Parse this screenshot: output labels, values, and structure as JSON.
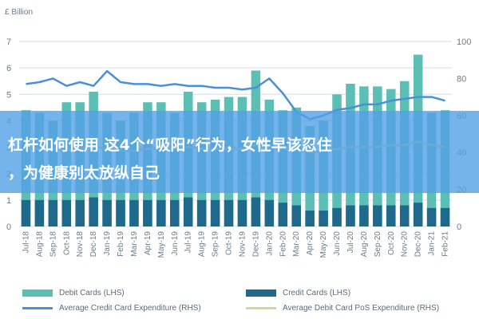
{
  "chart_data": {
    "type": "bar",
    "unit_label": "£ Billion",
    "categories": [
      "Jul-18",
      "Aug-18",
      "Sep-18",
      "Oct-18",
      "Nov-18",
      "Dec-18",
      "Jan-19",
      "Feb-19",
      "Mar-19",
      "Apr-19",
      "May-19",
      "Jun-19",
      "Jul-19",
      "Aug-19",
      "Sep-19",
      "Oct-19",
      "Nov-19",
      "Dec-19",
      "Jan-20",
      "Feb-20",
      "Mar-20",
      "Apr-20",
      "May-20",
      "Jun-20",
      "Jul-20",
      "Aug-20",
      "Sep-20",
      "Oct-20",
      "Nov-20",
      "Dec-20",
      "Jan-21",
      "Feb-21"
    ],
    "left_axis": {
      "ylim": [
        0,
        7
      ],
      "ticks": [
        "0",
        "1",
        "2",
        "3",
        "4",
        "5",
        "6",
        "7"
      ]
    },
    "right_axis": {
      "ylim": [
        0,
        100
      ],
      "ticks": [
        "0",
        "20",
        "40",
        "60",
        "80",
        "100"
      ]
    },
    "series": [
      {
        "name": "Debit Cards (LHS)",
        "kind": "bar",
        "axis": "left",
        "color": "#5bbfb5",
        "values": [
          4.4,
          4.3,
          4.0,
          4.7,
          4.7,
          5.1,
          4.3,
          4.0,
          4.3,
          4.7,
          4.7,
          4.3,
          5.1,
          4.7,
          4.8,
          4.9,
          4.9,
          5.9,
          4.8,
          4.4,
          4.5,
          3.8,
          4.0,
          5.0,
          5.4,
          5.3,
          5.3,
          5.2,
          5.5,
          6.5,
          4.3,
          4.4
        ]
      },
      {
        "name": "Credit Cards (LHS)",
        "kind": "bar",
        "axis": "left",
        "color": "#1f6a8c",
        "values": [
          1.0,
          1.0,
          1.0,
          1.0,
          1.0,
          1.1,
          1.0,
          1.0,
          1.0,
          1.0,
          1.0,
          1.0,
          1.1,
          1.0,
          1.0,
          1.0,
          1.0,
          1.1,
          1.0,
          0.9,
          0.8,
          0.6,
          0.6,
          0.7,
          0.8,
          0.8,
          0.8,
          0.8,
          0.8,
          0.9,
          0.7,
          0.7
        ]
      },
      {
        "name": "Average Credit Card Expenditure (RHS)",
        "kind": "line",
        "axis": "right",
        "color": "#4a90d9",
        "values": [
          77,
          78,
          80,
          76,
          78,
          76,
          84,
          78,
          77,
          77,
          76,
          77,
          76,
          76,
          75,
          75,
          74,
          75,
          80,
          72,
          62,
          58,
          60,
          63,
          64,
          66,
          66,
          68,
          69,
          70,
          70,
          68
        ]
      },
      {
        "name": "Average Debit Card PoS Expenditure (RHS)",
        "kind": "line",
        "axis": "right",
        "color": "#c8dd9a",
        "values": [
          42,
          42,
          42,
          41,
          42,
          43,
          42,
          41,
          41,
          42,
          42,
          42,
          43,
          42,
          42,
          42,
          42,
          44,
          43,
          42,
          42,
          40,
          41,
          42,
          43,
          43,
          43,
          44,
          44,
          46,
          44,
          43
        ]
      }
    ]
  },
  "overlay": {
    "line1": "杠杆如何使用 这4个“吸阳”行为，女性早该忍住",
    "line2": "，为健康别太放纵自己"
  }
}
